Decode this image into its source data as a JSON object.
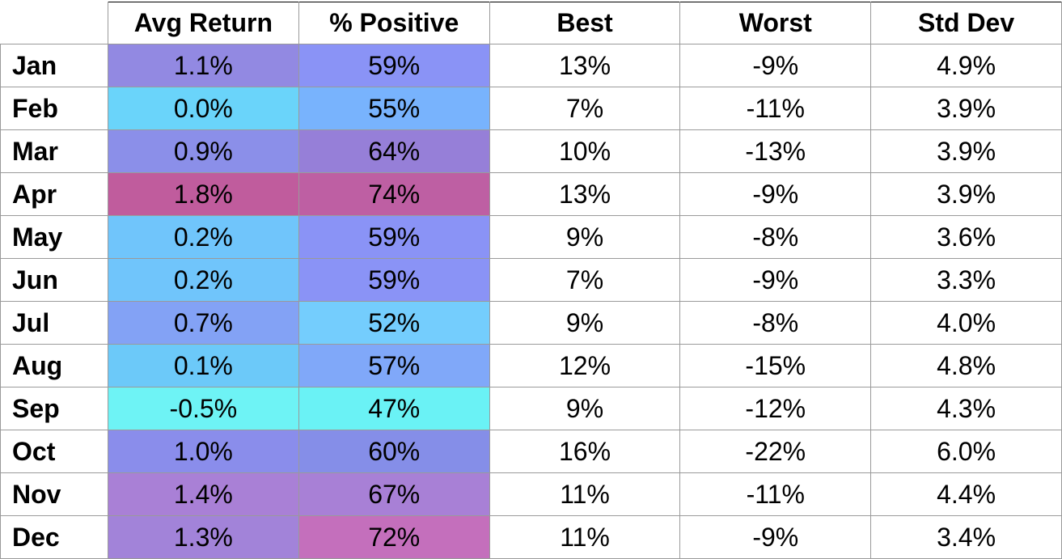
{
  "chart_data": {
    "type": "table",
    "columns": [
      "",
      "Avg Return",
      "% Positive",
      "Best",
      "Worst",
      "Std Dev"
    ],
    "rows": [
      {
        "month": "Jan",
        "avg_return": "1.1%",
        "pct_positive": "59%",
        "best": "13%",
        "worst": "-9%",
        "std_dev": "4.9%",
        "avg_color": "#9289e2",
        "pos_color": "#8a93f6"
      },
      {
        "month": "Feb",
        "avg_return": "0.0%",
        "pct_positive": "55%",
        "best": "7%",
        "worst": "-11%",
        "std_dev": "3.9%",
        "avg_color": "#6ad4fa",
        "pos_color": "#78b3fd"
      },
      {
        "month": "Mar",
        "avg_return": "0.9%",
        "pct_positive": "64%",
        "best": "10%",
        "worst": "-13%",
        "std_dev": "3.9%",
        "avg_color": "#8b8fe9",
        "pos_color": "#967fd8"
      },
      {
        "month": "Apr",
        "avg_return": "1.8%",
        "pct_positive": "74%",
        "best": "13%",
        "worst": "-9%",
        "std_dev": "3.9%",
        "avg_color": "#c05c9d",
        "pos_color": "#be5fa3"
      },
      {
        "month": "May",
        "avg_return": "0.2%",
        "pct_positive": "59%",
        "best": "9%",
        "worst": "-8%",
        "std_dev": "3.6%",
        "avg_color": "#70c5fb",
        "pos_color": "#8a93f6"
      },
      {
        "month": "Jun",
        "avg_return": "0.2%",
        "pct_positive": "59%",
        "best": "7%",
        "worst": "-9%",
        "std_dev": "3.3%",
        "avg_color": "#70c5fb",
        "pos_color": "#8a93f6"
      },
      {
        "month": "Jul",
        "avg_return": "0.7%",
        "pct_positive": "52%",
        "best": "9%",
        "worst": "-8%",
        "std_dev": "4.0%",
        "avg_color": "#83a2f5",
        "pos_color": "#74cdfd"
      },
      {
        "month": "Aug",
        "avg_return": "0.1%",
        "pct_positive": "57%",
        "best": "12%",
        "worst": "-15%",
        "std_dev": "4.8%",
        "avg_color": "#6cc9f9",
        "pos_color": "#80a8f9"
      },
      {
        "month": "Sep",
        "avg_return": "-0.5%",
        "pct_positive": "47%",
        "best": "9%",
        "worst": "-12%",
        "std_dev": "4.3%",
        "avg_color": "#6ef3f5",
        "pos_color": "#6af2f5"
      },
      {
        "month": "Oct",
        "avg_return": "1.0%",
        "pct_positive": "60%",
        "best": "16%",
        "worst": "-22%",
        "std_dev": "6.0%",
        "avg_color": "#8a8deb",
        "pos_color": "#858ee8"
      },
      {
        "month": "Nov",
        "avg_return": "1.4%",
        "pct_positive": "67%",
        "best": "11%",
        "worst": "-11%",
        "std_dev": "4.4%",
        "avg_color": "#a980d6",
        "pos_color": "#a880d6"
      },
      {
        "month": "Dec",
        "avg_return": "1.3%",
        "pct_positive": "72%",
        "best": "11%",
        "worst": "-9%",
        "std_dev": "3.4%",
        "avg_color": "#a283d9",
        "pos_color": "#c46fbc"
      }
    ]
  }
}
